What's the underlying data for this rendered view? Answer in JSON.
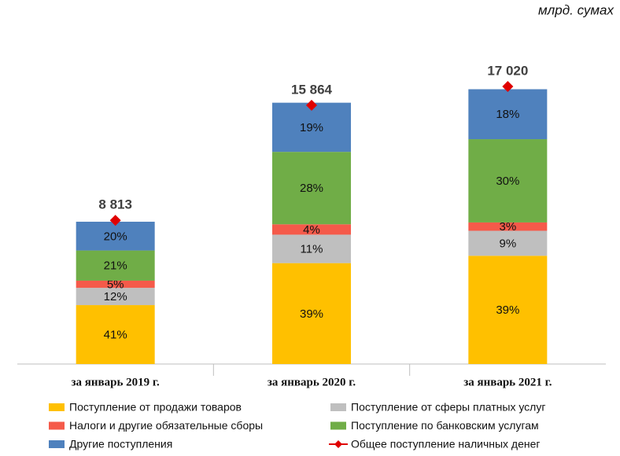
{
  "chart_data": {
    "type": "stacked_bar",
    "unit_label": "млрд. сумах",
    "categories": [
      "за январь 2019 г.",
      "за январь 2020 г.",
      "за январь 2021 г."
    ],
    "series": [
      {
        "name": "Поступление  от продажи товаров",
        "color": "#FFC000",
        "values": [
          41,
          39,
          39
        ],
        "value_labels": [
          "41%",
          "39%",
          "39%"
        ]
      },
      {
        "name": "Поступление  от сферы платных услуг",
        "color": "#BFBFBF",
        "values": [
          12,
          11,
          9
        ],
        "value_labels": [
          "12%",
          "11%",
          "9%"
        ]
      },
      {
        "name": "Налоги и другие обязательные сборы",
        "color": "#F55A4A",
        "values": [
          5,
          4,
          3
        ],
        "value_labels": [
          "5%",
          "4%",
          "3%"
        ]
      },
      {
        "name": "Поступление  по банковским услугам",
        "color": "#70AD47",
        "values": [
          21,
          28,
          30
        ],
        "value_labels": [
          "21%",
          "28%",
          "30%"
        ]
      },
      {
        "name": "Другие поступления",
        "color": "#4F81BD",
        "values": [
          20,
          19,
          18
        ],
        "value_labels": [
          "20%",
          "19%",
          "18%"
        ]
      }
    ],
    "totals": {
      "name": "Общее поступление  наличных денег",
      "color": "#E00000",
      "values": [
        8813,
        15864,
        17020
      ],
      "value_labels": [
        "8 813",
        "15 864",
        "17 020"
      ]
    },
    "ylim": [
      0,
      17500
    ]
  }
}
